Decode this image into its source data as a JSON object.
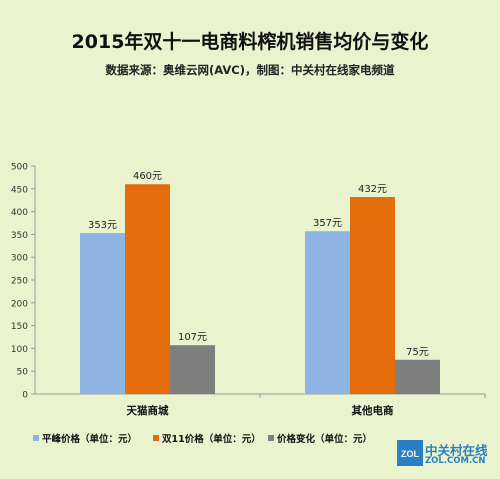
{
  "chart_data": {
    "type": "bar",
    "title": "2015年双十一电商料榨机销售均价与变化",
    "subtitle": "数据来源：奥维云网(AVC)，制图：中关村在线家电频道",
    "categories": [
      "天猫商城",
      "其他电商"
    ],
    "series": [
      {
        "name": "平峰价格（单位：元）",
        "values": [
          353,
          357
        ],
        "labels": [
          "353元",
          "357元"
        ],
        "color": "#8eb4e3"
      },
      {
        "name": "双11价格（单位：元）",
        "values": [
          460,
          432
        ],
        "labels": [
          "460元",
          "432元"
        ],
        "color": "#e46c0a"
      },
      {
        "name": "价格变化（单位：元）",
        "values": [
          107,
          75
        ],
        "labels": [
          "107元",
          "75元"
        ],
        "color": "#7f7f7f"
      }
    ],
    "ylim": [
      0,
      500
    ],
    "yticks": [
      "0",
      "50",
      "100",
      "150",
      "200",
      "250",
      "300",
      "350",
      "400",
      "450",
      "500"
    ],
    "grid": false,
    "legend": "bottom"
  },
  "watermark": {
    "main": "中关村在线",
    "sub": "ZOL.COM.CN",
    "logo_text": "ZOL"
  }
}
